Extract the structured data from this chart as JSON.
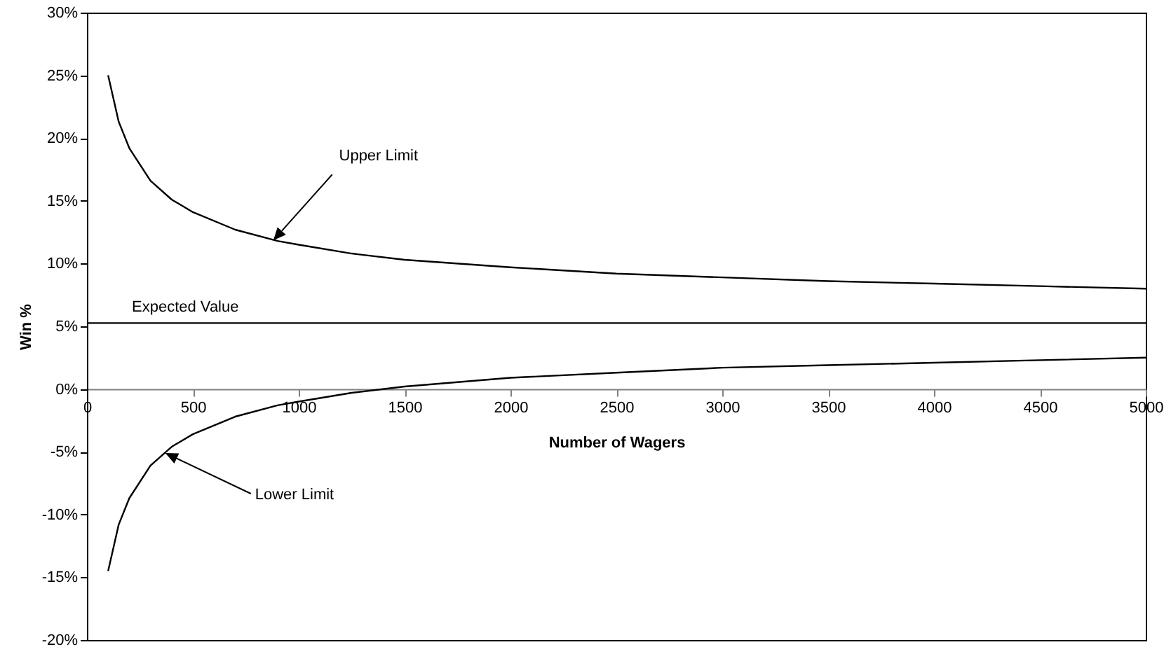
{
  "chart_data": {
    "type": "line",
    "xlabel": "Number of Wagers",
    "ylabel": "Win %",
    "x": [
      100,
      150,
      200,
      300,
      400,
      500,
      700,
      900,
      1000,
      1250,
      1500,
      2000,
      2500,
      3000,
      3500,
      4000,
      4500,
      5000
    ],
    "series": [
      {
        "color": "#000000",
        "values": [
          25,
          21.3,
          19.2,
          16.6,
          15.1,
          14.1,
          12.7,
          11.8,
          11.5,
          10.8,
          10.3,
          9.7,
          9.2,
          8.9,
          8.6,
          8.4,
          8.2,
          8.0
        ]
      },
      {
        "color": "#000000",
        "values": [
          -14.5,
          -10.8,
          -8.7,
          -6.1,
          -4.6,
          -3.6,
          -2.2,
          -1.3,
          -1.0,
          -0.3,
          0.2,
          0.9,
          1.3,
          1.7,
          1.9,
          2.1,
          2.3,
          2.5
        ]
      }
    ],
    "xlim": [
      0,
      5000
    ],
    "xticks": [
      0,
      500,
      1000,
      1500,
      2000,
      2500,
      3000,
      3500,
      4000,
      4500,
      5000
    ],
    "ylim": [
      -20,
      30
    ],
    "yticks": [
      {
        "value": -20,
        "label": "-20%"
      },
      {
        "value": -15,
        "label": "-15%"
      },
      {
        "value": -10,
        "label": "-10%"
      },
      {
        "value": -5,
        "label": "-5%"
      },
      {
        "value": 0,
        "label": "0%"
      },
      {
        "value": 5,
        "label": "5%"
      },
      {
        "value": 10,
        "label": "10%"
      },
      {
        "value": 15,
        "label": "15%"
      },
      {
        "value": 20,
        "label": "20%"
      },
      {
        "value": 25,
        "label": "25%"
      },
      {
        "value": 30,
        "label": "30%"
      }
    ],
    "ref_lines": [
      {
        "axis": "y",
        "value": 5.26,
        "label": "Expected Value"
      }
    ],
    "annotations": [
      {
        "text": "Upper Limit",
        "x": 880,
        "y": 11.85
      },
      {
        "text": "Lower Limit",
        "x": 370,
        "y": -5.1
      }
    ],
    "grid": false,
    "marker": "none",
    "line_style": "solid"
  }
}
